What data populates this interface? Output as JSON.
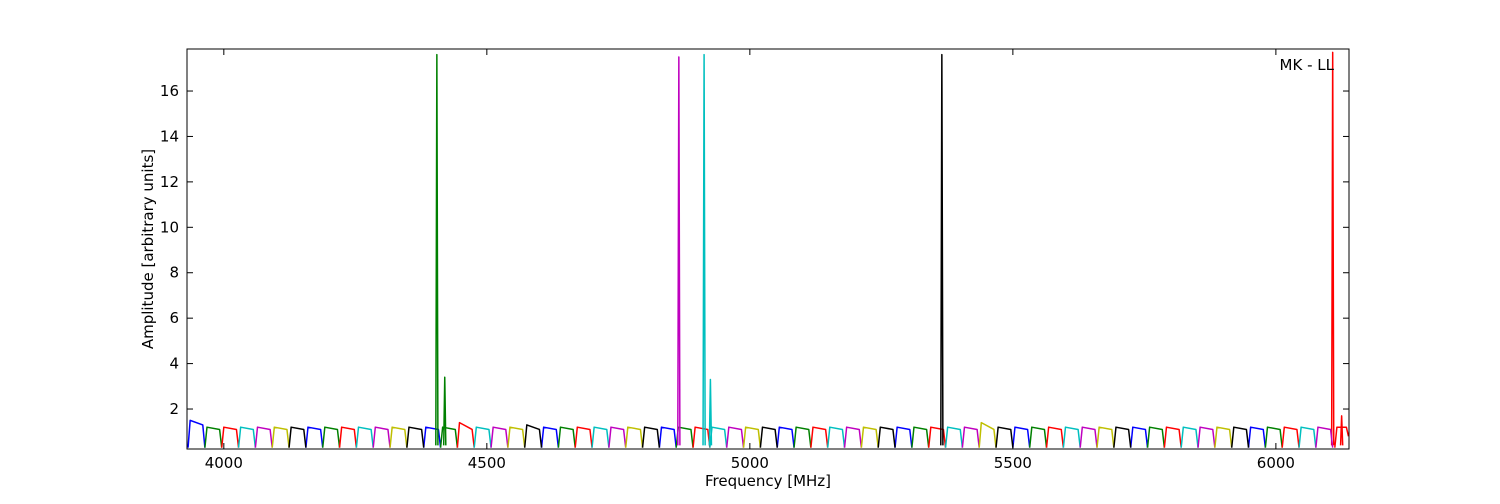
{
  "chart_data": {
    "type": "line",
    "annotation": "MK - LL",
    "x_label": "Frequency [MHz]",
    "y_label": "Amplitude [arbitrary units]",
    "xlim": [
      3930,
      6139
    ],
    "ylim": [
      0.24,
      17.85
    ],
    "xticks": [
      4000,
      4500,
      5000,
      5500,
      6000
    ],
    "yticks": [
      2,
      4,
      6,
      8,
      10,
      12,
      14,
      16
    ],
    "series": [
      {
        "color": "#0000ff",
        "x": [
          3932,
          3936,
          3960,
          3964,
          null,
          4156,
          4160,
          4184,
          4188,
          null,
          4380,
          4384,
          4408,
          4412,
          null,
          4604,
          4608,
          4632,
          4636,
          null,
          4828,
          4832,
          4856,
          4860,
          null,
          5052,
          5056,
          5080,
          5084,
          null,
          5276,
          5280,
          5304,
          5308,
          null,
          5500,
          5504,
          5528,
          5532,
          null,
          5724,
          5728,
          5752,
          5756,
          null,
          5948,
          5952,
          5976,
          5980
        ],
        "values": [
          0.3,
          1.5,
          1.3,
          0.3,
          null,
          0.3,
          1.2,
          1.1,
          0.3,
          null,
          0.3,
          1.2,
          1.1,
          0.3,
          null,
          0.3,
          1.2,
          1.1,
          0.3,
          null,
          0.3,
          1.2,
          1.1,
          0.3,
          null,
          0.3,
          1.2,
          1.1,
          0.3,
          null,
          0.3,
          1.2,
          1.1,
          0.3,
          null,
          0.3,
          1.2,
          1.1,
          0.3,
          null,
          0.3,
          1.2,
          1.1,
          0.3,
          null,
          0.3,
          1.2,
          1.1,
          0.3
        ]
      },
      {
        "color": "#008000",
        "x": [
          3964,
          3968,
          3992,
          3996,
          null,
          4188,
          4192,
          4216,
          4220,
          null,
          4412,
          4416,
          4440,
          4444,
          null,
          4636,
          4640,
          4664,
          4668,
          null,
          4860,
          4864,
          4888,
          4892,
          null,
          5084,
          5088,
          5112,
          5116,
          null,
          5308,
          5312,
          5336,
          5340,
          null,
          5532,
          5536,
          5560,
          5564,
          null,
          5756,
          5760,
          5784,
          5788,
          null,
          5980,
          5984,
          6008,
          6012,
          null,
          4403,
          4405,
          4407,
          null,
          4418,
          4420,
          4422
        ],
        "values": [
          0.3,
          1.2,
          1.1,
          0.3,
          null,
          0.3,
          1.2,
          1.1,
          0.3,
          null,
          0.3,
          1.2,
          1.1,
          0.3,
          null,
          0.3,
          1.2,
          1.1,
          0.3,
          null,
          0.3,
          1.2,
          1.1,
          0.3,
          null,
          0.3,
          1.2,
          1.1,
          0.3,
          null,
          0.3,
          1.2,
          1.1,
          0.3,
          null,
          0.3,
          1.2,
          1.1,
          0.3,
          null,
          0.3,
          1.2,
          1.1,
          0.3,
          null,
          0.3,
          1.2,
          1.1,
          0.3,
          null,
          0.4,
          17.6,
          0.4,
          null,
          0.4,
          3.4,
          0.4
        ]
      },
      {
        "color": "#ff0000",
        "x": [
          3996,
          4000,
          4024,
          4028,
          null,
          4220,
          4224,
          4248,
          4252,
          null,
          4444,
          4448,
          4472,
          4476,
          null,
          4668,
          4672,
          4696,
          4700,
          null,
          4892,
          4896,
          4920,
          4924,
          null,
          5116,
          5120,
          5144,
          5148,
          null,
          5340,
          5344,
          5368,
          5372,
          null,
          5564,
          5568,
          5592,
          5596,
          null,
          5788,
          5792,
          5816,
          5820,
          null,
          6012,
          6016,
          6040,
          6044,
          null,
          6112,
          6116,
          6134,
          6138,
          null,
          6106,
          6108,
          6110,
          null,
          6123,
          6125,
          6127
        ],
        "values": [
          0.3,
          1.2,
          1.1,
          0.3,
          null,
          0.3,
          1.2,
          1.1,
          0.3,
          null,
          0.3,
          1.4,
          1.1,
          0.3,
          null,
          0.3,
          1.2,
          1.1,
          0.3,
          null,
          0.3,
          1.2,
          1.1,
          0.3,
          null,
          0.3,
          1.2,
          1.1,
          0.3,
          null,
          0.3,
          1.2,
          1.1,
          0.3,
          null,
          0.3,
          1.2,
          1.1,
          0.3,
          null,
          0.3,
          1.2,
          1.1,
          0.3,
          null,
          0.3,
          1.2,
          1.1,
          0.3,
          null,
          0.3,
          1.2,
          1.2,
          0.8,
          null,
          0.4,
          17.7,
          0.4,
          null,
          0.4,
          1.7,
          0.4
        ]
      },
      {
        "color": "#00bfbf",
        "x": [
          4028,
          4032,
          4056,
          4060,
          null,
          4252,
          4256,
          4280,
          4284,
          null,
          4476,
          4480,
          4504,
          4508,
          null,
          4700,
          4704,
          4728,
          4732,
          null,
          4924,
          4928,
          4952,
          4956,
          null,
          5148,
          5152,
          5176,
          5180,
          null,
          5372,
          5376,
          5400,
          5404,
          null,
          5596,
          5600,
          5624,
          5628,
          null,
          5820,
          5824,
          5848,
          5852,
          null,
          6044,
          6048,
          6072,
          6076,
          null,
          4911,
          4913,
          4915,
          null,
          4923,
          4925,
          4927
        ],
        "values": [
          0.3,
          1.2,
          1.1,
          0.3,
          null,
          0.3,
          1.2,
          1.1,
          0.3,
          null,
          0.3,
          1.2,
          1.1,
          0.3,
          null,
          0.3,
          1.2,
          1.1,
          0.3,
          null,
          0.3,
          1.2,
          1.1,
          0.3,
          null,
          0.3,
          1.2,
          1.1,
          0.3,
          null,
          0.3,
          1.2,
          1.1,
          0.3,
          null,
          0.3,
          1.2,
          1.1,
          0.3,
          null,
          0.3,
          1.2,
          1.1,
          0.3,
          null,
          0.3,
          1.2,
          1.1,
          0.3,
          null,
          0.4,
          17.6,
          0.4,
          null,
          0.4,
          3.3,
          0.4
        ]
      },
      {
        "color": "#bf00bf",
        "x": [
          4060,
          4064,
          4088,
          4092,
          null,
          4284,
          4288,
          4312,
          4316,
          null,
          4508,
          4512,
          4536,
          4540,
          null,
          4732,
          4736,
          4760,
          4764,
          null,
          4956,
          4960,
          4984,
          4988,
          null,
          5180,
          5184,
          5208,
          5212,
          null,
          5404,
          5408,
          5432,
          5436,
          null,
          5628,
          5632,
          5656,
          5660,
          null,
          5852,
          5856,
          5880,
          5884,
          null,
          6076,
          6080,
          6104,
          6108,
          null,
          4863,
          4865,
          4867
        ],
        "values": [
          0.3,
          1.2,
          1.1,
          0.3,
          null,
          0.3,
          1.2,
          1.1,
          0.3,
          null,
          0.3,
          1.2,
          1.1,
          0.3,
          null,
          0.3,
          1.2,
          1.1,
          0.3,
          null,
          0.3,
          1.2,
          1.1,
          0.3,
          null,
          0.3,
          1.2,
          1.1,
          0.3,
          null,
          0.3,
          1.2,
          1.1,
          0.3,
          null,
          0.3,
          1.2,
          1.1,
          0.3,
          null,
          0.3,
          1.2,
          1.1,
          0.3,
          null,
          0.3,
          1.2,
          1.1,
          0.3,
          null,
          0.4,
          17.5,
          0.4
        ]
      },
      {
        "color": "#bfbf00",
        "x": [
          4092,
          4096,
          4120,
          4124,
          null,
          4316,
          4320,
          4344,
          4348,
          null,
          4540,
          4544,
          4568,
          4572,
          null,
          4764,
          4768,
          4792,
          4796,
          null,
          4988,
          4992,
          5016,
          5020,
          null,
          5212,
          5216,
          5240,
          5244,
          null,
          5436,
          5440,
          5464,
          5468,
          null,
          5660,
          5664,
          5688,
          5692,
          null,
          5884,
          5888,
          5912,
          5916
        ],
        "values": [
          0.3,
          1.2,
          1.1,
          0.3,
          null,
          0.3,
          1.2,
          1.1,
          0.3,
          null,
          0.3,
          1.2,
          1.1,
          0.3,
          null,
          0.3,
          1.2,
          1.1,
          0.3,
          null,
          0.3,
          1.2,
          1.1,
          0.3,
          null,
          0.3,
          1.2,
          1.1,
          0.3,
          null,
          0.3,
          1.4,
          1.1,
          0.3,
          null,
          0.3,
          1.2,
          1.1,
          0.3,
          null,
          0.3,
          1.2,
          1.1,
          0.3
        ]
      },
      {
        "color": "#000000",
        "x": [
          4124,
          4128,
          4152,
          4156,
          null,
          4348,
          4352,
          4376,
          4380,
          null,
          4572,
          4576,
          4600,
          4604,
          null,
          4796,
          4800,
          4824,
          4828,
          null,
          5020,
          5024,
          5048,
          5052,
          null,
          5244,
          5248,
          5272,
          5276,
          null,
          5468,
          5472,
          5496,
          5500,
          null,
          5692,
          5696,
          5720,
          5724,
          null,
          5916,
          5920,
          5944,
          5948,
          null,
          5363,
          5365,
          5367
        ],
        "values": [
          0.3,
          1.2,
          1.1,
          0.3,
          null,
          0.3,
          1.2,
          1.1,
          0.3,
          null,
          0.3,
          1.3,
          1.1,
          0.3,
          null,
          0.3,
          1.2,
          1.1,
          0.3,
          null,
          0.3,
          1.2,
          1.1,
          0.3,
          null,
          0.3,
          1.2,
          1.1,
          0.3,
          null,
          0.3,
          1.2,
          1.1,
          0.3,
          null,
          0.3,
          1.2,
          1.1,
          0.3,
          null,
          0.3,
          1.2,
          1.1,
          0.3,
          null,
          0.4,
          17.6,
          0.4
        ]
      }
    ]
  }
}
